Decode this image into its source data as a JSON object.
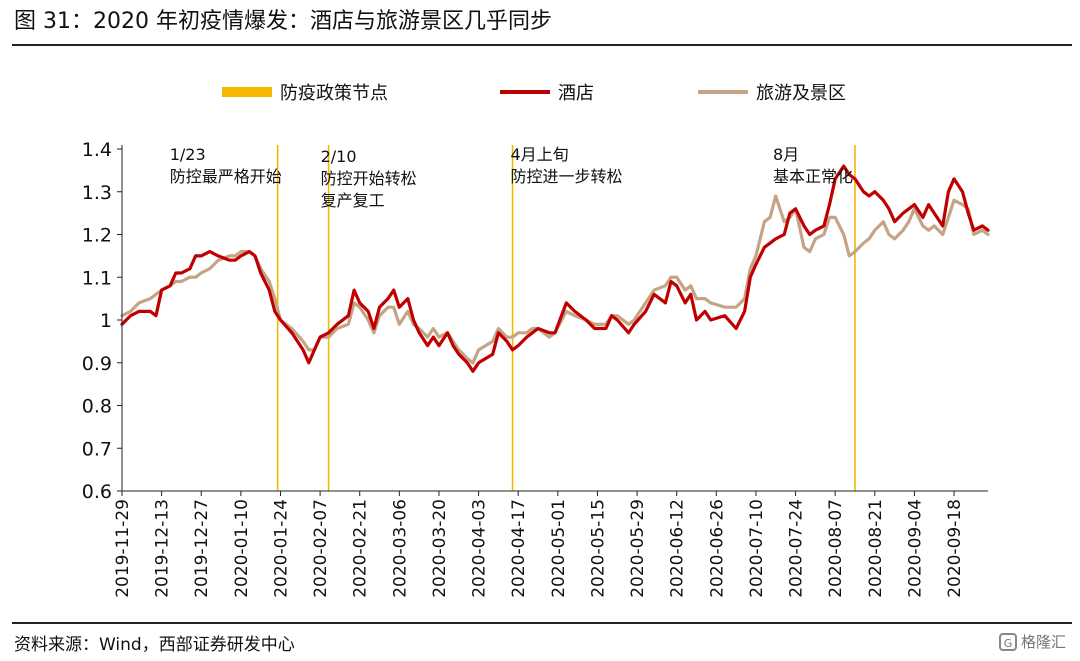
{
  "title": "图 31：2020 年初疫情爆发：酒店与旅游景区几乎同步",
  "source": "资料来源：Wind，西部证券研发中心",
  "watermark": "格隆汇",
  "watermark_badge": "G",
  "chart_data": {
    "type": "line",
    "ylim": [
      0.6,
      1.4
    ],
    "yticks": [
      "1.4",
      "1.3",
      "1.2",
      "1.1",
      "1",
      "0.9",
      "0.8",
      "0.7",
      "0.6"
    ],
    "xticks": [
      "2019-11-29",
      "2019-12-13",
      "2019-12-27",
      "2020-01-10",
      "2020-01-24",
      "2020-02-07",
      "2020-02-21",
      "2020-03-06",
      "2020-03-20",
      "2020-04-03",
      "2020-04-17",
      "2020-05-01",
      "2020-05-15",
      "2020-05-29",
      "2020-06-12",
      "2020-06-26",
      "2020-07-10",
      "2020-07-24",
      "2020-08-07",
      "2020-08-21",
      "2020-09-04",
      "2020-09-18"
    ],
    "xlim": [
      "2019-11-29",
      "2020-09-30"
    ],
    "legend": {
      "placement": "top",
      "items": [
        {
          "label": "防疫政策节点",
          "color": "#F5B800",
          "kind": "bar"
        },
        {
          "label": "酒店",
          "color": "#C00000",
          "kind": "line"
        },
        {
          "label": "旅游及景区",
          "color": "#C4A484",
          "kind": "line"
        }
      ]
    },
    "vlines": [
      {
        "date": "2020-01-23",
        "label_lines": [
          "1/23",
          "防控最严格开始"
        ]
      },
      {
        "date": "2020-02-10",
        "label_lines": [
          "2/10",
          "防控开始转松",
          "复产复工"
        ]
      },
      {
        "date": "2020-04-15",
        "label_lines": [
          "4月上旬",
          "防控进一步转松"
        ]
      },
      {
        "date": "2020-08-14",
        "label_lines": [
          "8月",
          "基本正常化"
        ]
      }
    ],
    "series": [
      {
        "name": "酒店",
        "color": "#C00000",
        "points": [
          [
            "2019-11-29",
            0.99
          ],
          [
            "2019-12-02",
            1.01
          ],
          [
            "2019-12-05",
            1.02
          ],
          [
            "2019-12-09",
            1.02
          ],
          [
            "2019-12-11",
            1.01
          ],
          [
            "2019-12-13",
            1.07
          ],
          [
            "2019-12-16",
            1.08
          ],
          [
            "2019-12-18",
            1.11
          ],
          [
            "2019-12-20",
            1.11
          ],
          [
            "2019-12-23",
            1.12
          ],
          [
            "2019-12-25",
            1.15
          ],
          [
            "2019-12-27",
            1.15
          ],
          [
            "2019-12-30",
            1.16
          ],
          [
            "2020-01-02",
            1.15
          ],
          [
            "2020-01-06",
            1.14
          ],
          [
            "2020-01-08",
            1.14
          ],
          [
            "2020-01-10",
            1.15
          ],
          [
            "2020-01-13",
            1.16
          ],
          [
            "2020-01-15",
            1.15
          ],
          [
            "2020-01-17",
            1.11
          ],
          [
            "2020-01-20",
            1.07
          ],
          [
            "2020-01-22",
            1.02
          ],
          [
            "2020-01-24",
            1.0
          ],
          [
            "2020-01-28",
            0.97
          ],
          [
            "2020-02-01",
            0.93
          ],
          [
            "2020-02-03",
            0.9
          ],
          [
            "2020-02-05",
            0.93
          ],
          [
            "2020-02-07",
            0.96
          ],
          [
            "2020-02-10",
            0.97
          ],
          [
            "2020-02-13",
            0.99
          ],
          [
            "2020-02-17",
            1.01
          ],
          [
            "2020-02-19",
            1.07
          ],
          [
            "2020-02-21",
            1.04
          ],
          [
            "2020-02-24",
            1.02
          ],
          [
            "2020-02-26",
            0.98
          ],
          [
            "2020-02-28",
            1.03
          ],
          [
            "2020-03-02",
            1.05
          ],
          [
            "2020-03-04",
            1.07
          ],
          [
            "2020-03-06",
            1.03
          ],
          [
            "2020-03-09",
            1.05
          ],
          [
            "2020-03-11",
            1.0
          ],
          [
            "2020-03-13",
            0.97
          ],
          [
            "2020-03-16",
            0.94
          ],
          [
            "2020-03-18",
            0.96
          ],
          [
            "2020-03-20",
            0.94
          ],
          [
            "2020-03-23",
            0.97
          ],
          [
            "2020-03-25",
            0.94
          ],
          [
            "2020-03-27",
            0.92
          ],
          [
            "2020-03-30",
            0.9
          ],
          [
            "2020-04-01",
            0.88
          ],
          [
            "2020-04-03",
            0.9
          ],
          [
            "2020-04-08",
            0.92
          ],
          [
            "2020-04-10",
            0.97
          ],
          [
            "2020-04-13",
            0.95
          ],
          [
            "2020-04-15",
            0.93
          ],
          [
            "2020-04-17",
            0.94
          ],
          [
            "2020-04-20",
            0.96
          ],
          [
            "2020-04-22",
            0.97
          ],
          [
            "2020-04-24",
            0.98
          ],
          [
            "2020-04-28",
            0.97
          ],
          [
            "2020-04-30",
            0.97
          ],
          [
            "2020-05-04",
            1.04
          ],
          [
            "2020-05-07",
            1.02
          ],
          [
            "2020-05-11",
            1.0
          ],
          [
            "2020-05-14",
            0.98
          ],
          [
            "2020-05-18",
            0.98
          ],
          [
            "2020-05-20",
            1.01
          ],
          [
            "2020-05-22",
            1.0
          ],
          [
            "2020-05-26",
            0.97
          ],
          [
            "2020-05-28",
            0.99
          ],
          [
            "2020-06-01",
            1.02
          ],
          [
            "2020-06-04",
            1.06
          ],
          [
            "2020-06-08",
            1.04
          ],
          [
            "2020-06-10",
            1.09
          ],
          [
            "2020-06-12",
            1.08
          ],
          [
            "2020-06-15",
            1.04
          ],
          [
            "2020-06-17",
            1.06
          ],
          [
            "2020-06-19",
            1.0
          ],
          [
            "2020-06-22",
            1.02
          ],
          [
            "2020-06-24",
            1.0
          ],
          [
            "2020-06-29",
            1.01
          ],
          [
            "2020-07-03",
            0.98
          ],
          [
            "2020-07-06",
            1.02
          ],
          [
            "2020-07-08",
            1.1
          ],
          [
            "2020-07-10",
            1.13
          ],
          [
            "2020-07-13",
            1.17
          ],
          [
            "2020-07-15",
            1.18
          ],
          [
            "2020-07-17",
            1.19
          ],
          [
            "2020-07-20",
            1.2
          ],
          [
            "2020-07-22",
            1.25
          ],
          [
            "2020-07-24",
            1.26
          ],
          [
            "2020-07-27",
            1.22
          ],
          [
            "2020-07-29",
            1.2
          ],
          [
            "2020-07-31",
            1.21
          ],
          [
            "2020-08-03",
            1.22
          ],
          [
            "2020-08-05",
            1.27
          ],
          [
            "2020-08-07",
            1.33
          ],
          [
            "2020-08-10",
            1.36
          ],
          [
            "2020-08-12",
            1.34
          ],
          [
            "2020-08-14",
            1.33
          ],
          [
            "2020-08-17",
            1.3
          ],
          [
            "2020-08-19",
            1.29
          ],
          [
            "2020-08-21",
            1.3
          ],
          [
            "2020-08-24",
            1.28
          ],
          [
            "2020-08-26",
            1.26
          ],
          [
            "2020-08-28",
            1.23
          ],
          [
            "2020-08-31",
            1.25
          ],
          [
            "2020-09-02",
            1.26
          ],
          [
            "2020-09-04",
            1.27
          ],
          [
            "2020-09-07",
            1.24
          ],
          [
            "2020-09-09",
            1.27
          ],
          [
            "2020-09-11",
            1.25
          ],
          [
            "2020-09-14",
            1.22
          ],
          [
            "2020-09-16",
            1.3
          ],
          [
            "2020-09-18",
            1.33
          ],
          [
            "2020-09-21",
            1.3
          ],
          [
            "2020-09-23",
            1.25
          ],
          [
            "2020-09-25",
            1.21
          ],
          [
            "2020-09-28",
            1.22
          ],
          [
            "2020-09-30",
            1.21
          ]
        ]
      },
      {
        "name": "旅游及景区",
        "color": "#C4A484",
        "points": [
          [
            "2019-11-29",
            1.01
          ],
          [
            "2019-12-02",
            1.02
          ],
          [
            "2019-12-05",
            1.04
          ],
          [
            "2019-12-09",
            1.05
          ],
          [
            "2019-12-11",
            1.06
          ],
          [
            "2019-12-13",
            1.07
          ],
          [
            "2019-12-16",
            1.08
          ],
          [
            "2019-12-18",
            1.09
          ],
          [
            "2019-12-20",
            1.09
          ],
          [
            "2019-12-23",
            1.1
          ],
          [
            "2019-12-25",
            1.1
          ],
          [
            "2019-12-27",
            1.11
          ],
          [
            "2019-12-30",
            1.12
          ],
          [
            "2020-01-02",
            1.14
          ],
          [
            "2020-01-06",
            1.15
          ],
          [
            "2020-01-08",
            1.15
          ],
          [
            "2020-01-10",
            1.16
          ],
          [
            "2020-01-13",
            1.16
          ],
          [
            "2020-01-15",
            1.15
          ],
          [
            "2020-01-17",
            1.12
          ],
          [
            "2020-01-20",
            1.09
          ],
          [
            "2020-01-22",
            1.05
          ],
          [
            "2020-01-24",
            1.0
          ],
          [
            "2020-01-28",
            0.98
          ],
          [
            "2020-02-01",
            0.95
          ],
          [
            "2020-02-03",
            0.93
          ],
          [
            "2020-02-05",
            0.93
          ],
          [
            "2020-02-07",
            0.96
          ],
          [
            "2020-02-10",
            0.96
          ],
          [
            "2020-02-13",
            0.98
          ],
          [
            "2020-02-17",
            0.99
          ],
          [
            "2020-02-19",
            1.04
          ],
          [
            "2020-02-21",
            1.03
          ],
          [
            "2020-02-24",
            1.0
          ],
          [
            "2020-02-26",
            0.97
          ],
          [
            "2020-02-28",
            1.01
          ],
          [
            "2020-03-02",
            1.03
          ],
          [
            "2020-03-04",
            1.03
          ],
          [
            "2020-03-06",
            0.99
          ],
          [
            "2020-03-09",
            1.02
          ],
          [
            "2020-03-11",
            0.99
          ],
          [
            "2020-03-13",
            0.98
          ],
          [
            "2020-03-16",
            0.96
          ],
          [
            "2020-03-18",
            0.98
          ],
          [
            "2020-03-20",
            0.96
          ],
          [
            "2020-03-23",
            0.97
          ],
          [
            "2020-03-25",
            0.95
          ],
          [
            "2020-03-27",
            0.93
          ],
          [
            "2020-03-30",
            0.91
          ],
          [
            "2020-04-01",
            0.9
          ],
          [
            "2020-04-03",
            0.93
          ],
          [
            "2020-04-08",
            0.95
          ],
          [
            "2020-04-10",
            0.98
          ],
          [
            "2020-04-13",
            0.96
          ],
          [
            "2020-04-15",
            0.96
          ],
          [
            "2020-04-17",
            0.97
          ],
          [
            "2020-04-20",
            0.97
          ],
          [
            "2020-04-22",
            0.98
          ],
          [
            "2020-04-24",
            0.98
          ],
          [
            "2020-04-28",
            0.96
          ],
          [
            "2020-04-30",
            0.97
          ],
          [
            "2020-05-04",
            1.02
          ],
          [
            "2020-05-07",
            1.01
          ],
          [
            "2020-05-11",
            1.0
          ],
          [
            "2020-05-14",
            0.99
          ],
          [
            "2020-05-18",
            0.99
          ],
          [
            "2020-05-20",
            1.01
          ],
          [
            "2020-05-22",
            1.01
          ],
          [
            "2020-05-26",
            0.99
          ],
          [
            "2020-05-28",
            1.0
          ],
          [
            "2020-06-01",
            1.04
          ],
          [
            "2020-06-04",
            1.07
          ],
          [
            "2020-06-08",
            1.08
          ],
          [
            "2020-06-10",
            1.1
          ],
          [
            "2020-06-12",
            1.1
          ],
          [
            "2020-06-15",
            1.07
          ],
          [
            "2020-06-17",
            1.08
          ],
          [
            "2020-06-19",
            1.05
          ],
          [
            "2020-06-22",
            1.05
          ],
          [
            "2020-06-24",
            1.04
          ],
          [
            "2020-06-29",
            1.03
          ],
          [
            "2020-07-03",
            1.03
          ],
          [
            "2020-07-06",
            1.05
          ],
          [
            "2020-07-08",
            1.12
          ],
          [
            "2020-07-10",
            1.15
          ],
          [
            "2020-07-13",
            1.23
          ],
          [
            "2020-07-15",
            1.24
          ],
          [
            "2020-07-17",
            1.29
          ],
          [
            "2020-07-20",
            1.23
          ],
          [
            "2020-07-22",
            1.24
          ],
          [
            "2020-07-24",
            1.26
          ],
          [
            "2020-07-27",
            1.17
          ],
          [
            "2020-07-29",
            1.16
          ],
          [
            "2020-07-31",
            1.19
          ],
          [
            "2020-08-03",
            1.2
          ],
          [
            "2020-08-05",
            1.24
          ],
          [
            "2020-08-07",
            1.24
          ],
          [
            "2020-08-10",
            1.2
          ],
          [
            "2020-08-12",
            1.15
          ],
          [
            "2020-08-14",
            1.16
          ],
          [
            "2020-08-17",
            1.18
          ],
          [
            "2020-08-19",
            1.19
          ],
          [
            "2020-08-21",
            1.21
          ],
          [
            "2020-08-24",
            1.23
          ],
          [
            "2020-08-26",
            1.2
          ],
          [
            "2020-08-28",
            1.19
          ],
          [
            "2020-08-31",
            1.21
          ],
          [
            "2020-09-02",
            1.23
          ],
          [
            "2020-09-04",
            1.26
          ],
          [
            "2020-09-07",
            1.22
          ],
          [
            "2020-09-09",
            1.21
          ],
          [
            "2020-09-11",
            1.22
          ],
          [
            "2020-09-14",
            1.2
          ],
          [
            "2020-09-16",
            1.24
          ],
          [
            "2020-09-18",
            1.28
          ],
          [
            "2020-09-21",
            1.27
          ],
          [
            "2020-09-23",
            1.26
          ],
          [
            "2020-09-25",
            1.2
          ],
          [
            "2020-09-28",
            1.21
          ],
          [
            "2020-09-30",
            1.2
          ]
        ]
      }
    ]
  }
}
